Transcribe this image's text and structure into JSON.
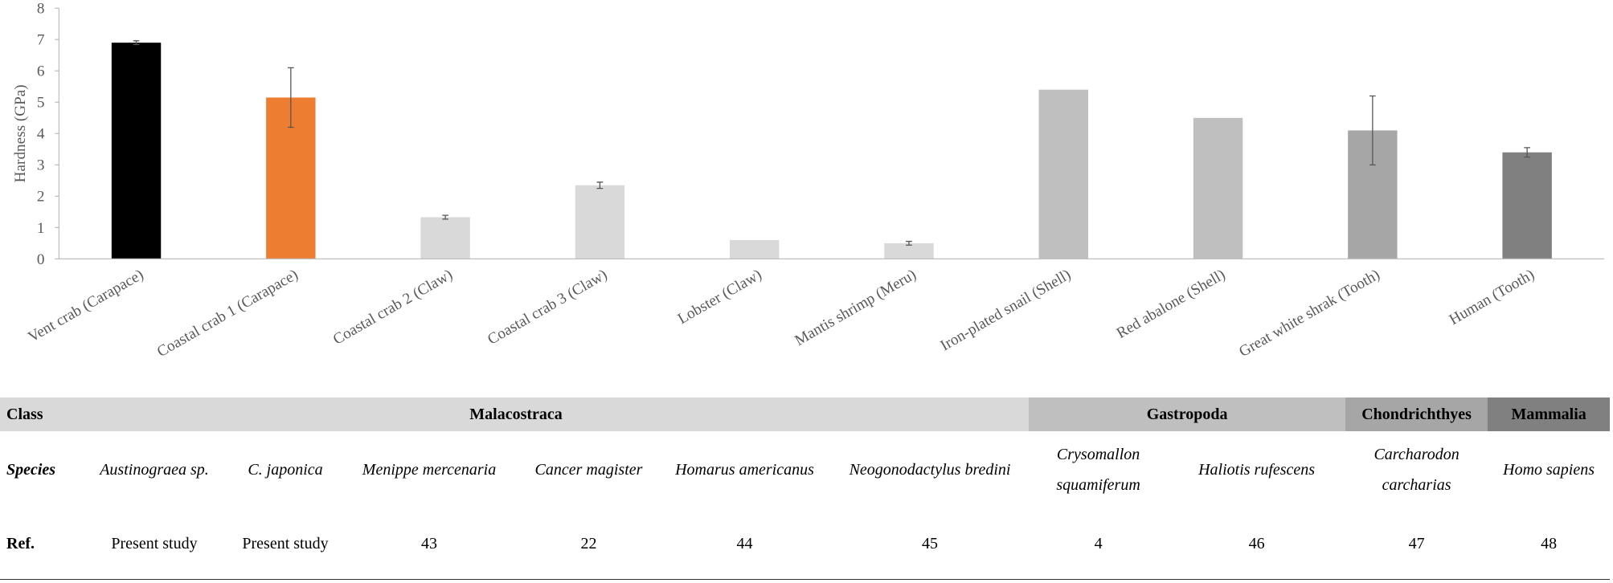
{
  "chart_data": {
    "type": "bar",
    "ylabel": "Hardness (GPa)",
    "categories": [
      "Vent crab (Carapace)",
      "Coastal crab 1 (Carapace)",
      "Coastal crab 2 (Claw)",
      "Coastal crab 3 (Claw)",
      "Lobster (Claw)",
      "Mantis shrimp (Meru)",
      "Iron-plated snail (Shell)",
      "Red abalone (Shell)",
      "Great white shrak (Tooth)",
      "Human (Tooth)"
    ],
    "values": [
      6.9,
      5.15,
      1.33,
      2.35,
      0.6,
      0.5,
      5.4,
      4.5,
      4.1,
      3.4
    ],
    "errors": [
      0.06,
      0.95,
      0.06,
      0.1,
      null,
      0.06,
      null,
      null,
      1.1,
      0.15
    ],
    "colors": [
      "#000000",
      "#ed7d31",
      "#d9d9d9",
      "#d9d9d9",
      "#d9d9d9",
      "#d9d9d9",
      "#bfbfbf",
      "#bfbfbf",
      "#a6a6a6",
      "#808080"
    ],
    "ylim": [
      0,
      8
    ],
    "yticks": [
      0,
      1,
      2,
      3,
      4,
      5,
      6,
      7,
      8
    ]
  },
  "table": {
    "class_label": "Class",
    "species_label": "Species",
    "ref_label": "Ref.",
    "classes": [
      {
        "name": "Malacostraca",
        "color": "#d9d9d9",
        "species": [
          {
            "name": "Austinograea sp.",
            "ref": "Present study"
          },
          {
            "name": "C. japonica",
            "ref": "Present study"
          },
          {
            "name": "Menippe mercenaria",
            "ref": "43"
          },
          {
            "name": "Cancer magister",
            "ref": "22"
          },
          {
            "name": "Homarus americanus",
            "ref": "44"
          },
          {
            "name": "Neogonodactylus bredini",
            "ref": "45"
          }
        ]
      },
      {
        "name": "Gastropoda",
        "color": "#bfbfbf",
        "species": [
          {
            "name": "Crysomallon squamiferum",
            "ref": "4"
          },
          {
            "name": "Haliotis rufescens",
            "ref": "46"
          }
        ]
      },
      {
        "name": "Chondrichthyes",
        "color": "#a6a6a6",
        "species": [
          {
            "name": "Carcharodon carcharias",
            "ref": "47"
          }
        ]
      },
      {
        "name": "Mammalia",
        "color": "#808080",
        "species": [
          {
            "name": "Homo sapiens",
            "ref": "48"
          }
        ]
      }
    ]
  }
}
